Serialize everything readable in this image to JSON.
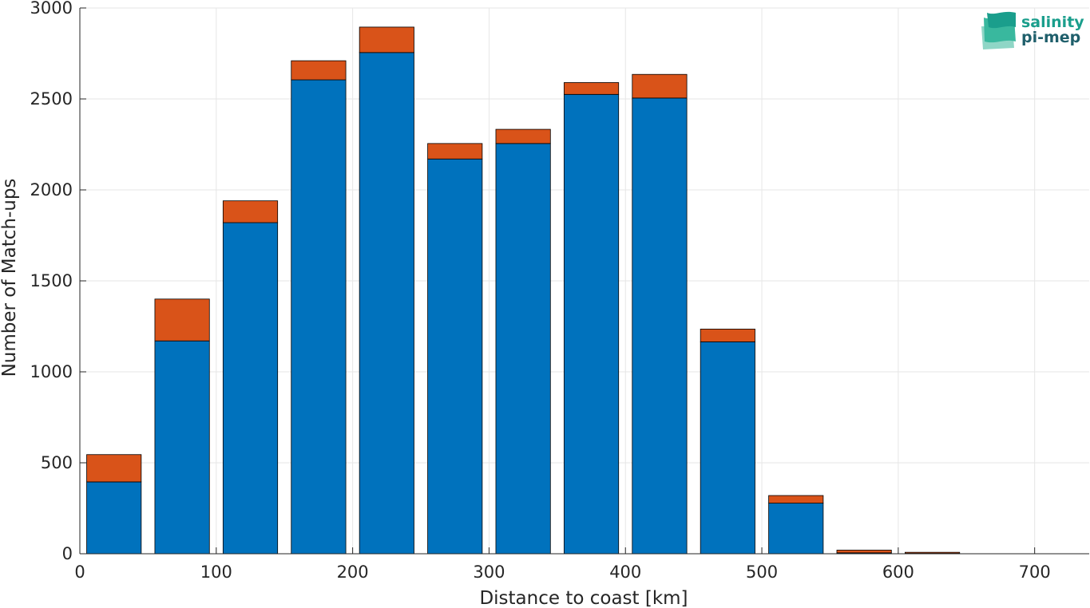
{
  "logo": {
    "line1": "salinity",
    "line2": "pi-mep"
  },
  "chart_data": {
    "type": "bar",
    "stacked": true,
    "xlabel": "Distance to coast [km]",
    "ylabel": "Number of Match-ups",
    "xlim": [
      0,
      740
    ],
    "ylim": [
      0,
      3000
    ],
    "xticks": [
      0,
      100,
      200,
      300,
      400,
      500,
      600,
      700
    ],
    "yticks": [
      0,
      500,
      1000,
      1500,
      2000,
      2500,
      3000
    ],
    "grid": true,
    "bar_width": 40,
    "x": [
      25,
      75,
      125,
      175,
      225,
      275,
      325,
      375,
      425,
      475,
      525,
      575,
      625,
      675
    ],
    "series": [
      {
        "color": "#0072bd",
        "values": [
          395,
          1170,
          1820,
          2605,
          2755,
          2170,
          2255,
          2525,
          2505,
          1165,
          278,
          5,
          2,
          0
        ]
      },
      {
        "color": "#d95319",
        "values": [
          150,
          230,
          120,
          105,
          140,
          85,
          78,
          65,
          130,
          70,
          42,
          15,
          6,
          0
        ]
      }
    ]
  }
}
